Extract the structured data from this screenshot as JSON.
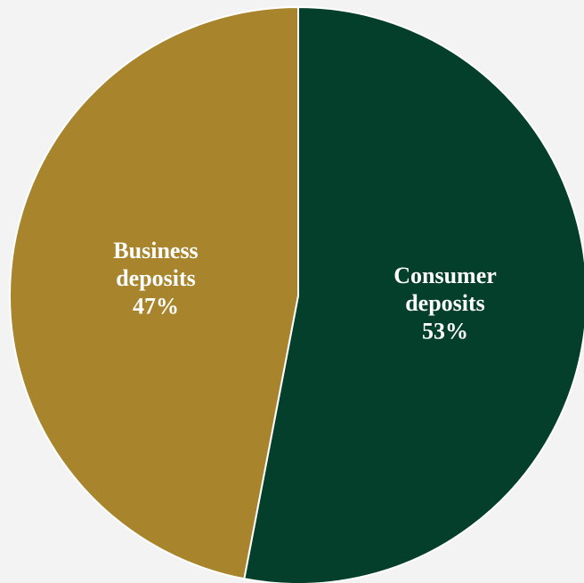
{
  "chart_data": {
    "type": "pie",
    "title": "",
    "slices": [
      {
        "label_lines": [
          "Consumer",
          "deposits"
        ],
        "value": 53,
        "value_label": "53%",
        "color": "#043f2c"
      },
      {
        "label_lines": [
          "Business",
          "deposits"
        ],
        "value": 47,
        "value_label": "47%",
        "color": "#a8852c"
      }
    ],
    "start_angle_deg": 0,
    "direction": "clockwise",
    "legend": "none",
    "separator_color": "#ffffff",
    "background": "#f3f3f3"
  }
}
